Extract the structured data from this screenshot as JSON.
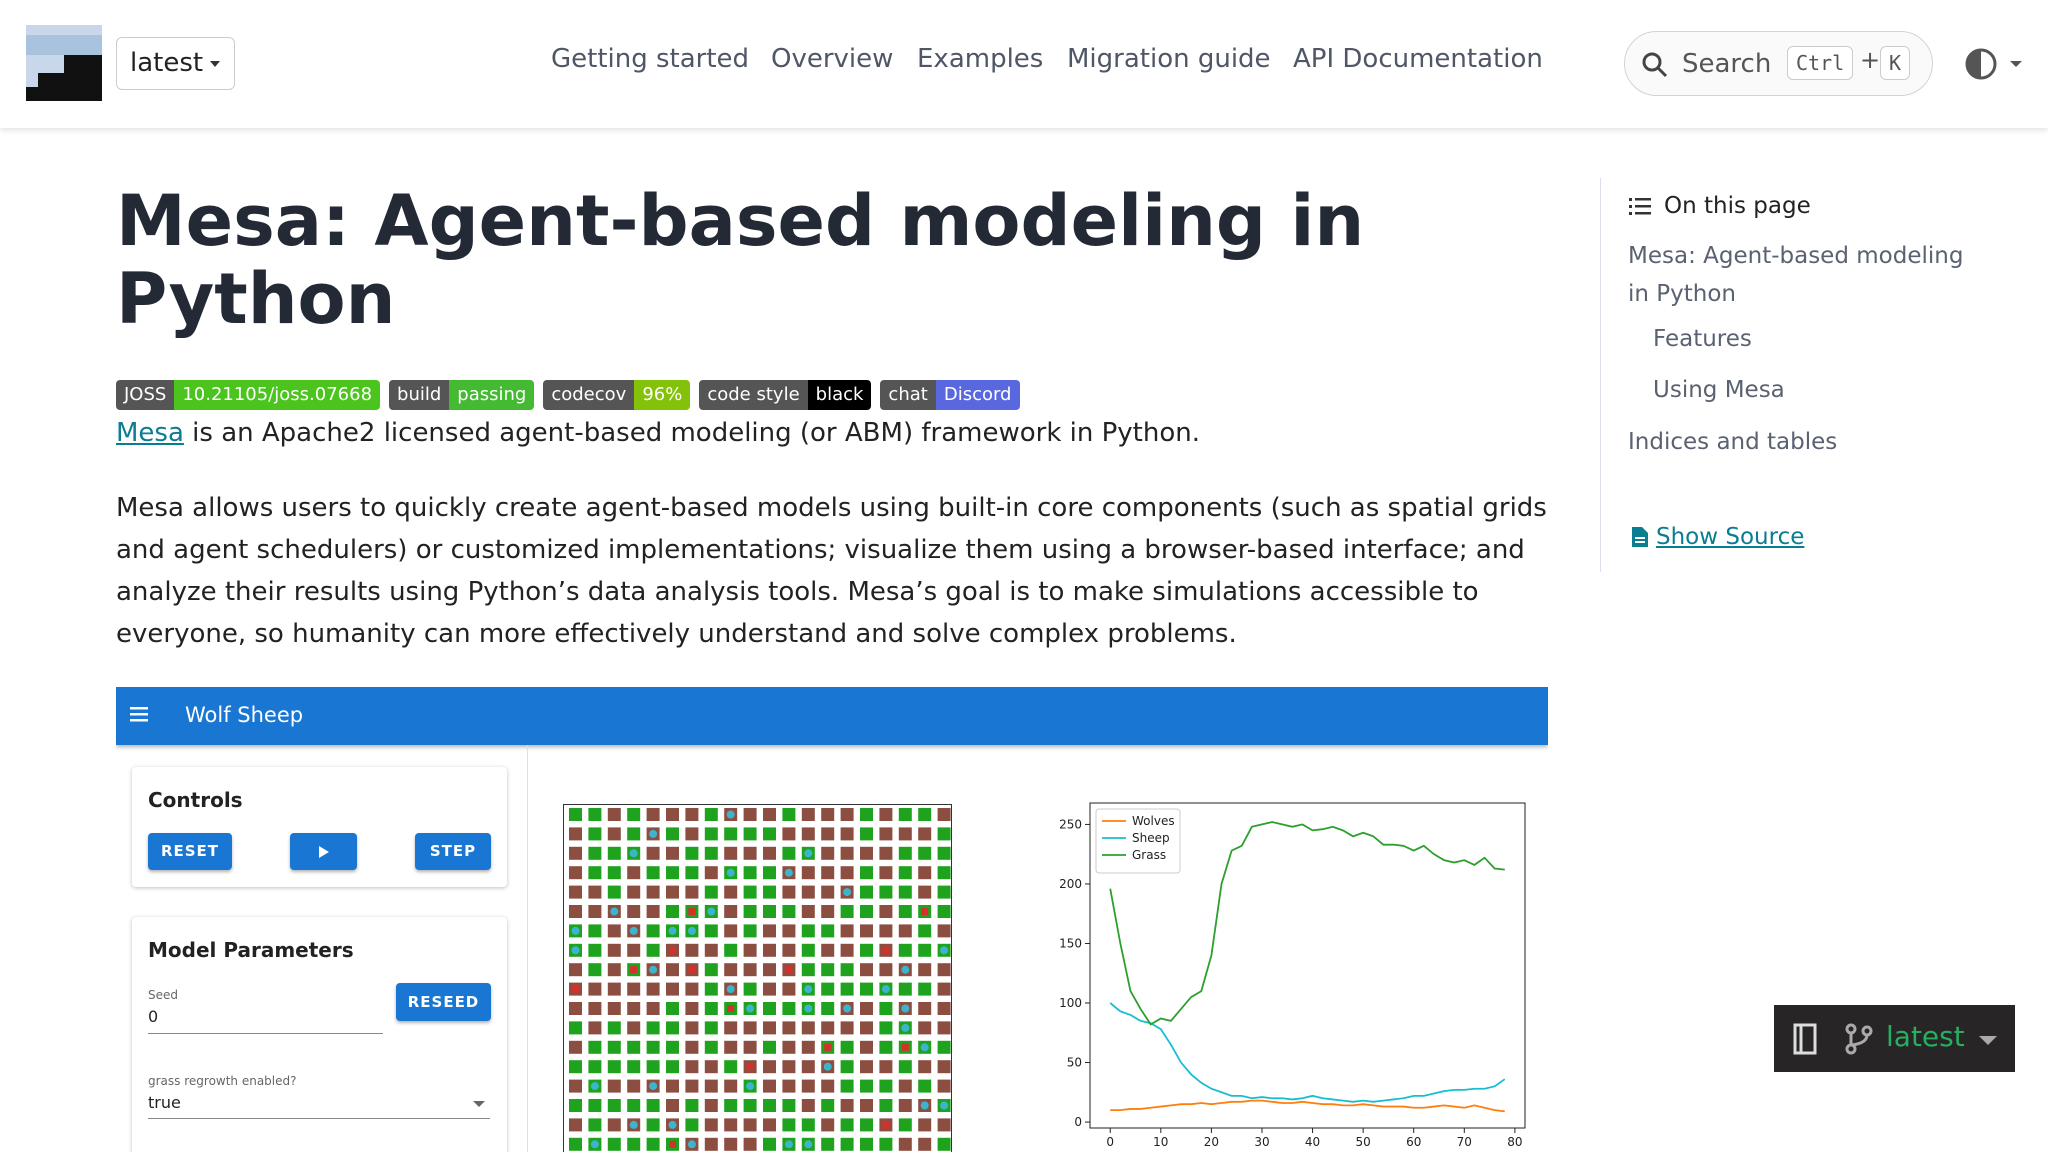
{
  "header": {
    "version": "latest",
    "nav": [
      "Getting started",
      "Overview",
      "Examples",
      "Migration guide",
      "API Documentation"
    ],
    "search": {
      "placeholder": "Search",
      "shortcut": [
        "Ctrl",
        "+",
        "K"
      ]
    }
  },
  "article": {
    "title": "Mesa: Agent-based modeling in Python",
    "badges": [
      {
        "label": "JOSS",
        "message": "10.21105/joss.07668",
        "color": "#4bc51d"
      },
      {
        "label": "build",
        "message": "passing",
        "color": "#44b932"
      },
      {
        "label": "codecov",
        "message": "96%",
        "color": "#83c10a"
      },
      {
        "label": "code style",
        "message": "black",
        "color": "#000000"
      },
      {
        "label": "chat",
        "message": "Discord",
        "color": "#5a68e0"
      }
    ],
    "intro": {
      "link": "Mesa",
      "text": " is an Apache2 licensed agent-based modeling (or ABM) framework in Python."
    },
    "paragraph": "Mesa allows users to quickly create agent-based models using built-in core components (such as spatial grids and agent schedulers) or customized implementations; visualize them using a browser-based interface; and analyze their results using Python’s data analysis tools. Mesa’s goal is to make simulations accessible to everyone, so humanity can more effectively understand and solve complex problems."
  },
  "app": {
    "title": "Wolf Sheep",
    "controls": {
      "title": "Controls",
      "reset": "RESET",
      "step": "STEP"
    },
    "parameters": {
      "title": "Model Parameters",
      "seed_label": "Seed",
      "seed": "0",
      "reseed": "RESEED",
      "grass_label": "grass regrowth enabled?",
      "grass": "true"
    }
  },
  "chart_data": {
    "type": "line",
    "legend": "upper left",
    "x": [
      0,
      2,
      4,
      6,
      8,
      10,
      12,
      14,
      16,
      18,
      20,
      22,
      24,
      26,
      28,
      30,
      32,
      34,
      36,
      38,
      40,
      42,
      44,
      46,
      48,
      50,
      52,
      54,
      56,
      58,
      60,
      62,
      64,
      66,
      68,
      70,
      72,
      74,
      76,
      78
    ],
    "series": [
      {
        "name": "Wolves",
        "color": "#ff7f0e",
        "values": [
          10,
          10,
          11,
          11,
          12,
          13,
          14,
          15,
          15,
          16,
          15,
          16,
          17,
          17,
          18,
          18,
          17,
          16,
          16,
          17,
          16,
          15,
          15,
          14,
          14,
          15,
          14,
          13,
          13,
          13,
          12,
          12,
          13,
          14,
          13,
          12,
          14,
          12,
          10,
          9
        ]
      },
      {
        "name": "Sheep",
        "color": "#17becf",
        "values": [
          100,
          93,
          90,
          85,
          83,
          78,
          65,
          50,
          40,
          33,
          28,
          25,
          22,
          22,
          20,
          21,
          20,
          20,
          19,
          20,
          22,
          20,
          19,
          18,
          17,
          18,
          17,
          18,
          19,
          20,
          22,
          22,
          24,
          26,
          27,
          27,
          28,
          28,
          30,
          36
        ]
      },
      {
        "name": "Grass",
        "color": "#2ca02c",
        "values": [
          196,
          150,
          110,
          95,
          82,
          87,
          85,
          95,
          105,
          110,
          140,
          200,
          228,
          232,
          248,
          250,
          252,
          250,
          248,
          250,
          245,
          246,
          248,
          245,
          240,
          243,
          240,
          233,
          233,
          232,
          228,
          232,
          225,
          220,
          218,
          220,
          216,
          222,
          213,
          212
        ]
      }
    ],
    "xlim": [
      -4,
      82
    ],
    "ylim": [
      -5,
      268
    ],
    "xticks": [
      0,
      10,
      20,
      30,
      40,
      50,
      60,
      70,
      80
    ],
    "yticks": [
      0,
      50,
      100,
      150,
      200,
      250
    ]
  },
  "toc": {
    "title": "On this page",
    "items": [
      "Mesa: Agent-based modeling in Python",
      "Features",
      "Using Mesa",
      "Indices and tables"
    ],
    "source": "Show Source"
  },
  "version_badge": "latest"
}
